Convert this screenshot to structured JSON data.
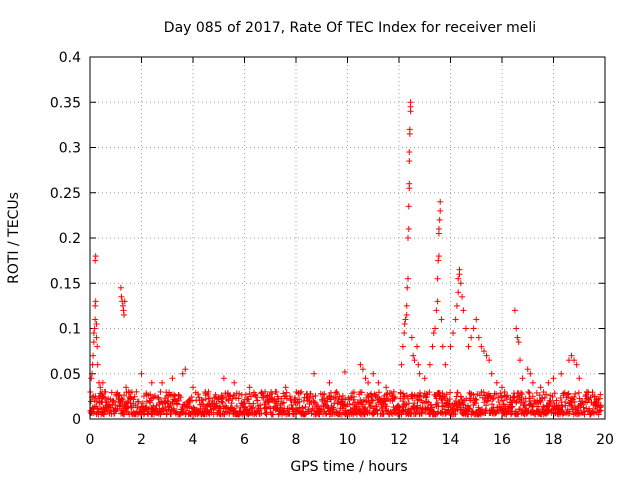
{
  "chart_data": {
    "type": "scatter",
    "title": "Day 085 of 2017, Rate Of TEC Index for receiver meli",
    "xlabel": "GPS time / hours",
    "ylabel": "ROTI / TECUs",
    "xlim": [
      0,
      20
    ],
    "ylim": [
      0,
      0.4
    ],
    "x_ticks": [
      0,
      2,
      4,
      6,
      8,
      10,
      12,
      14,
      16,
      18,
      20
    ],
    "y_ticks": [
      0,
      0.05,
      0.1,
      0.15,
      0.2,
      0.25,
      0.3,
      0.35,
      0.4
    ],
    "x_tick_labels": [
      "0",
      "2",
      "4",
      "6",
      "8",
      "10",
      "12",
      "14",
      "16",
      "18",
      "20"
    ],
    "y_tick_labels": [
      "0",
      "0.05",
      "0.1",
      "0.15",
      "0.2",
      "0.25",
      "0.3",
      "0.35",
      "0.4"
    ],
    "grid": true,
    "marker": "+",
    "color": "#ff0000",
    "series": [
      {
        "name": "ROTI",
        "baseline_range": [
          0.005,
          0.03
        ],
        "points": [
          [
            0.05,
            0.045
          ],
          [
            0.08,
            0.05
          ],
          [
            0.1,
            0.06
          ],
          [
            0.12,
            0.07
          ],
          [
            0.15,
            0.085
          ],
          [
            0.15,
            0.095
          ],
          [
            0.18,
            0.1
          ],
          [
            0.2,
            0.11
          ],
          [
            0.2,
            0.125
          ],
          [
            0.22,
            0.13
          ],
          [
            0.2,
            0.175
          ],
          [
            0.22,
            0.18
          ],
          [
            0.25,
            0.09
          ],
          [
            0.25,
            0.105
          ],
          [
            0.28,
            0.08
          ],
          [
            0.3,
            0.06
          ],
          [
            0.35,
            0.04
          ],
          [
            0.4,
            0.035
          ],
          [
            0.5,
            0.04
          ],
          [
            0.6,
            0.03
          ],
          [
            1.2,
            0.145
          ],
          [
            1.22,
            0.135
          ],
          [
            1.25,
            0.13
          ],
          [
            1.28,
            0.125
          ],
          [
            1.3,
            0.12
          ],
          [
            1.32,
            0.115
          ],
          [
            1.35,
            0.13
          ],
          [
            1.4,
            0.035
          ],
          [
            1.5,
            0.03
          ],
          [
            1.8,
            0.03
          ],
          [
            2.0,
            0.05
          ],
          [
            2.4,
            0.04
          ],
          [
            2.8,
            0.04
          ],
          [
            3.2,
            0.045
          ],
          [
            3.6,
            0.05
          ],
          [
            3.7,
            0.055
          ],
          [
            4.0,
            0.035
          ],
          [
            4.6,
            0.03
          ],
          [
            5.2,
            0.045
          ],
          [
            5.6,
            0.04
          ],
          [
            6.2,
            0.035
          ],
          [
            6.8,
            0.03
          ],
          [
            7.2,
            0.03
          ],
          [
            7.6,
            0.035
          ],
          [
            8.2,
            0.03
          ],
          [
            8.7,
            0.05
          ],
          [
            9.3,
            0.04
          ],
          [
            9.9,
            0.052
          ],
          [
            10.5,
            0.06
          ],
          [
            10.6,
            0.055
          ],
          [
            10.7,
            0.045
          ],
          [
            10.8,
            0.04
          ],
          [
            11.0,
            0.05
          ],
          [
            11.2,
            0.04
          ],
          [
            11.5,
            0.035
          ],
          [
            11.8,
            0.03
          ],
          [
            12.1,
            0.06
          ],
          [
            12.15,
            0.08
          ],
          [
            12.2,
            0.095
          ],
          [
            12.22,
            0.105
          ],
          [
            12.25,
            0.11
          ],
          [
            12.3,
            0.115
          ],
          [
            12.3,
            0.125
          ],
          [
            12.32,
            0.145
          ],
          [
            12.35,
            0.155
          ],
          [
            12.35,
            0.2
          ],
          [
            12.38,
            0.21
          ],
          [
            12.38,
            0.235
          ],
          [
            12.4,
            0.255
          ],
          [
            12.4,
            0.26
          ],
          [
            12.4,
            0.285
          ],
          [
            12.4,
            0.295
          ],
          [
            12.42,
            0.315
          ],
          [
            12.42,
            0.32
          ],
          [
            12.45,
            0.34
          ],
          [
            12.45,
            0.345
          ],
          [
            12.45,
            0.35
          ],
          [
            12.5,
            0.09
          ],
          [
            12.55,
            0.07
          ],
          [
            12.6,
            0.065
          ],
          [
            12.7,
            0.08
          ],
          [
            12.75,
            0.06
          ],
          [
            12.8,
            0.05
          ],
          [
            13.0,
            0.045
          ],
          [
            13.2,
            0.06
          ],
          [
            13.3,
            0.08
          ],
          [
            13.35,
            0.095
          ],
          [
            13.4,
            0.1
          ],
          [
            13.45,
            0.12
          ],
          [
            13.5,
            0.13
          ],
          [
            13.5,
            0.155
          ],
          [
            13.52,
            0.175
          ],
          [
            13.55,
            0.18
          ],
          [
            13.55,
            0.205
          ],
          [
            13.55,
            0.21
          ],
          [
            13.58,
            0.22
          ],
          [
            13.6,
            0.23
          ],
          [
            13.6,
            0.24
          ],
          [
            13.65,
            0.11
          ],
          [
            13.7,
            0.08
          ],
          [
            13.8,
            0.06
          ],
          [
            14.0,
            0.08
          ],
          [
            14.1,
            0.095
          ],
          [
            14.2,
            0.11
          ],
          [
            14.25,
            0.125
          ],
          [
            14.3,
            0.14
          ],
          [
            14.3,
            0.155
          ],
          [
            14.35,
            0.16
          ],
          [
            14.35,
            0.165
          ],
          [
            14.4,
            0.15
          ],
          [
            14.45,
            0.135
          ],
          [
            14.5,
            0.12
          ],
          [
            14.6,
            0.1
          ],
          [
            14.7,
            0.08
          ],
          [
            14.8,
            0.09
          ],
          [
            14.9,
            0.1
          ],
          [
            15.0,
            0.11
          ],
          [
            15.1,
            0.09
          ],
          [
            15.2,
            0.08
          ],
          [
            15.3,
            0.075
          ],
          [
            15.4,
            0.07
          ],
          [
            15.5,
            0.065
          ],
          [
            15.6,
            0.05
          ],
          [
            15.8,
            0.04
          ],
          [
            16.0,
            0.035
          ],
          [
            16.5,
            0.12
          ],
          [
            16.55,
            0.1
          ],
          [
            16.6,
            0.09
          ],
          [
            16.65,
            0.085
          ],
          [
            16.7,
            0.065
          ],
          [
            16.8,
            0.045
          ],
          [
            17.0,
            0.055
          ],
          [
            17.1,
            0.05
          ],
          [
            17.2,
            0.04
          ],
          [
            17.5,
            0.035
          ],
          [
            17.8,
            0.04
          ],
          [
            18.0,
            0.045
          ],
          [
            18.3,
            0.05
          ],
          [
            18.6,
            0.065
          ],
          [
            18.7,
            0.07
          ],
          [
            18.8,
            0.065
          ],
          [
            18.9,
            0.06
          ],
          [
            19.0,
            0.045
          ],
          [
            19.3,
            0.03
          ],
          [
            19.6,
            0.025
          ]
        ]
      }
    ]
  }
}
